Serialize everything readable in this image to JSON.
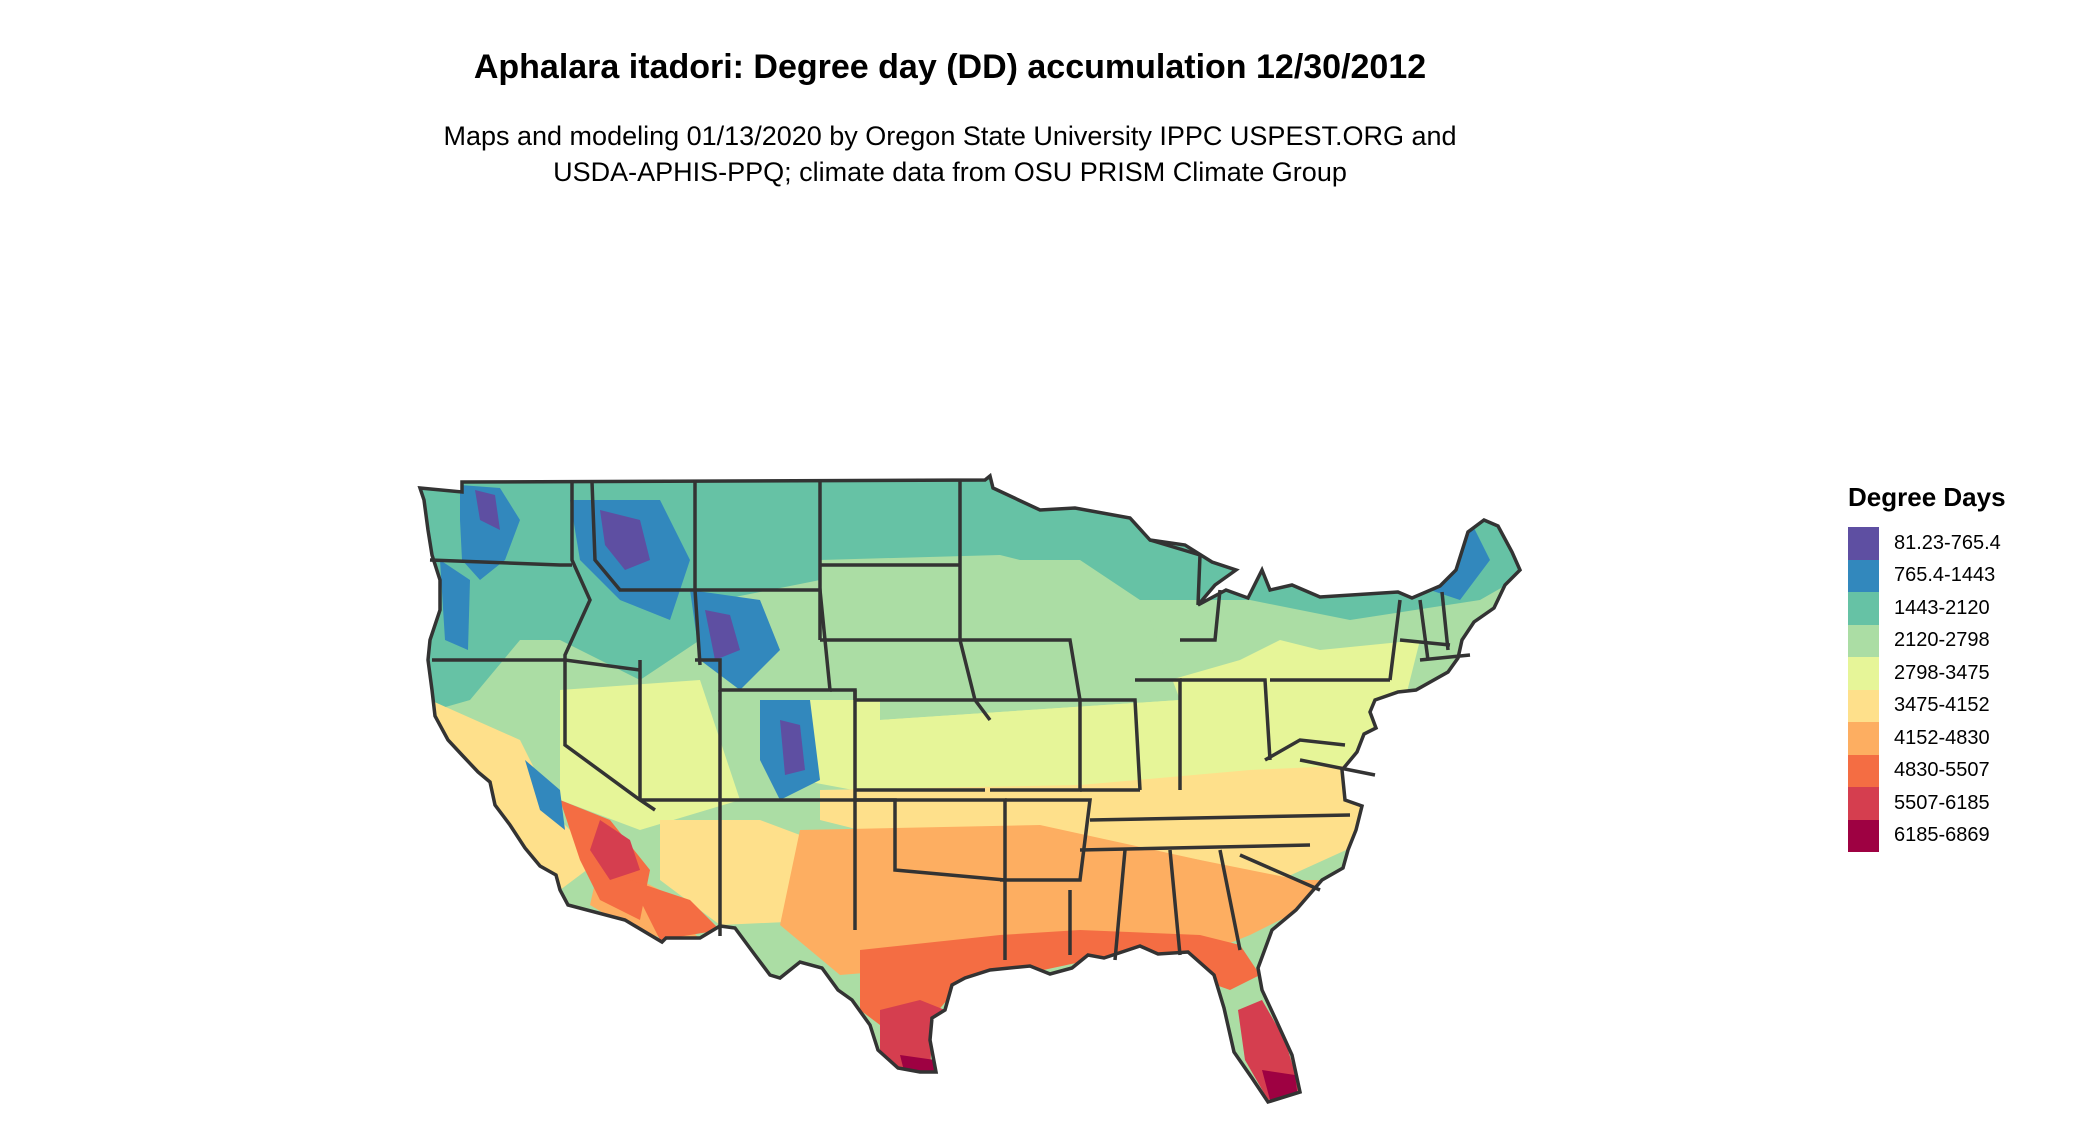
{
  "title": "Aphalara itadori: Degree day (DD) accumulation 12/30/2012",
  "subtitle_lines": [
    "Maps and modeling 01/13/2020 by Oregon State University IPPC USPEST.ORG and",
    "USDA-APHIS-PPQ; climate data from OSU PRISM Climate Group"
  ],
  "legend": {
    "title": "Degree Days",
    "items": [
      {
        "label": "81.23-765.4",
        "color": "#5e4fa2"
      },
      {
        "label": "765.4-1443",
        "color": "#3288bd"
      },
      {
        "label": "1443-2120",
        "color": "#66c2a5"
      },
      {
        "label": "2120-2798",
        "color": "#abdda4"
      },
      {
        "label": "2798-3475",
        "color": "#e6f598"
      },
      {
        "label": "3475-4152",
        "color": "#fee08b"
      },
      {
        "label": "4152-4830",
        "color": "#fdae61"
      },
      {
        "label": "4830-5507",
        "color": "#f46d43"
      },
      {
        "label": "5507-6185",
        "color": "#d53e4f"
      },
      {
        "label": "6185-6869",
        "color": "#9e0142"
      }
    ]
  }
}
